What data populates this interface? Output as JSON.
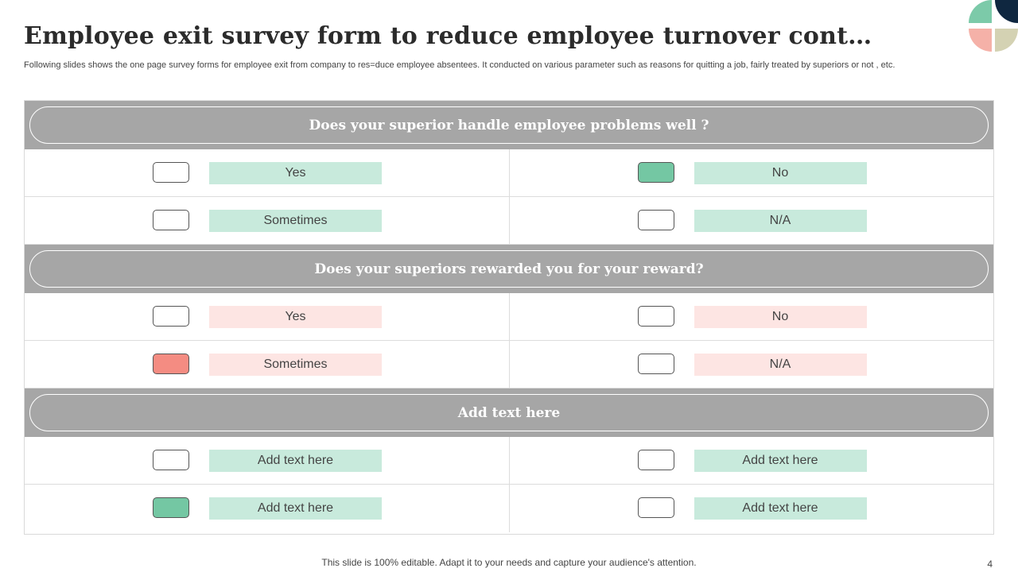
{
  "title": "Employee exit survey form to reduce employee turnover cont…",
  "subtitle": "Following slides shows the one page survey forms for employee exit from company to res=duce employee absentees. It conducted on various parameter such as reasons for quitting a job, fairly treated by superiors or not , etc.",
  "colors": {
    "green": "#74c7a3",
    "green_light": "#c8eadc",
    "red": "#f48c82",
    "pink_light": "#fde5e3",
    "header_gray": "#a6a6a6"
  },
  "sections": [
    {
      "question": "Does your superior handle employee problems well ?",
      "options": [
        {
          "label": "Yes",
          "checked": false
        },
        {
          "label": "No",
          "checked": true
        },
        {
          "label": "Sometimes",
          "checked": false
        },
        {
          "label": "N/A",
          "checked": false
        }
      ]
    },
    {
      "question": "Does your superiors rewarded you for your reward?",
      "options": [
        {
          "label": "Yes",
          "checked": false
        },
        {
          "label": "No",
          "checked": false
        },
        {
          "label": "Sometimes",
          "checked": true
        },
        {
          "label": "N/A",
          "checked": false
        }
      ]
    },
    {
      "question": "Add text here",
      "options": [
        {
          "label": "Add text here",
          "checked": false
        },
        {
          "label": "Add text here",
          "checked": false
        },
        {
          "label": "Add text here",
          "checked": true
        },
        {
          "label": "Add text here",
          "checked": false
        }
      ]
    }
  ],
  "footer": "This slide is 100% editable. Adapt it to your needs and capture your audience's attention.",
  "page_number": "4"
}
